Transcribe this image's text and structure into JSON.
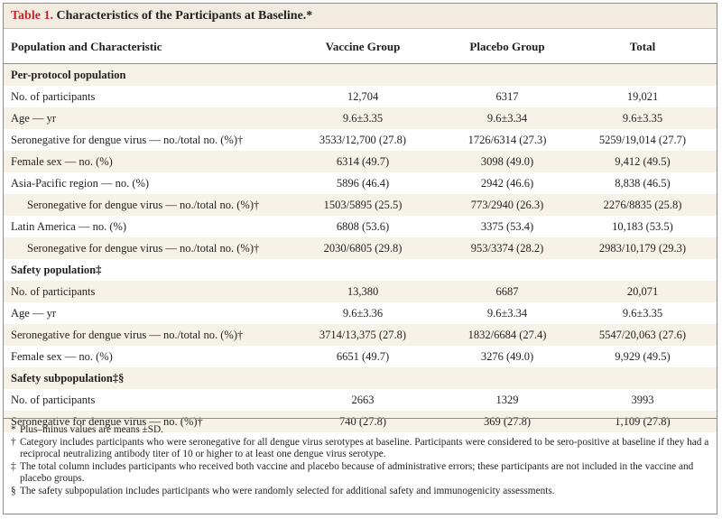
{
  "title": {
    "label": "Table 1.",
    "text": "Characteristics of the Participants at Baseline.*"
  },
  "header": [
    "Population and Characteristic",
    "Vaccine Group",
    "Placebo Group",
    "Total"
  ],
  "rows": [
    {
      "type": "section",
      "label": "Per-protocol population"
    },
    {
      "type": "data",
      "label": "No. of participants",
      "vaccine": "12,704",
      "placebo": "6317",
      "total": "19,021"
    },
    {
      "type": "data",
      "label": "Age — yr",
      "vaccine": "9.6±3.35",
      "placebo": "9.6±3.34",
      "total": "9.6±3.35"
    },
    {
      "type": "data",
      "label": "Seronegative for dengue virus — no./total no. (%)†",
      "vaccine": "3533/12,700 (27.8)",
      "placebo": "1726/6314 (27.3)",
      "total": "5259/19,014 (27.7)"
    },
    {
      "type": "data",
      "label": "Female sex — no. (%)",
      "vaccine": "6314 (49.7)",
      "placebo": "3098 (49.0)",
      "total": "9,412 (49.5)"
    },
    {
      "type": "data",
      "label": "Asia-Pacific region — no. (%)",
      "vaccine": "5896 (46.4)",
      "placebo": "2942 (46.6)",
      "total": "8,838 (46.5)"
    },
    {
      "type": "data",
      "indent": true,
      "label": "Seronegative for dengue virus — no./total no. (%)†",
      "vaccine": "1503/5895 (25.5)",
      "placebo": "773/2940 (26.3)",
      "total": "2276/8835 (25.8)"
    },
    {
      "type": "data",
      "label": "Latin America — no. (%)",
      "vaccine": "6808 (53.6)",
      "placebo": "3375 (53.4)",
      "total": "10,183 (53.5)"
    },
    {
      "type": "data",
      "indent": true,
      "label": "Seronegative for dengue virus — no./total no. (%)†",
      "vaccine": "2030/6805 (29.8)",
      "placebo": "953/3374 (28.2)",
      "total": "2983/10,179 (29.3)"
    },
    {
      "type": "section",
      "label": "Safety population‡"
    },
    {
      "type": "data",
      "label": "No. of participants",
      "vaccine": "13,380",
      "placebo": "6687",
      "total": "20,071"
    },
    {
      "type": "data",
      "label": "Age — yr",
      "vaccine": "9.6±3.36",
      "placebo": "9.6±3.34",
      "total": "9.6±3.35"
    },
    {
      "type": "data",
      "label": "Seronegative for dengue virus — no./total no. (%)†",
      "vaccine": "3714/13,375 (27.8)",
      "placebo": "1832/6684 (27.4)",
      "total": "5547/20,063 (27.6)"
    },
    {
      "type": "data",
      "label": "Female sex — no. (%)",
      "vaccine": "6651 (49.7)",
      "placebo": "3276 (49.0)",
      "total": "9,929 (49.5)"
    },
    {
      "type": "section",
      "label": "Safety subpopulation‡§"
    },
    {
      "type": "data",
      "label": "No. of participants",
      "vaccine": "2663",
      "placebo": "1329",
      "total": "3993"
    },
    {
      "type": "data",
      "label": "Seronegative for dengue virus — no. (%)†",
      "vaccine": "740 (27.8)",
      "placebo": "369 (27.8)",
      "total": "1,109 (27.8)"
    }
  ],
  "footnotes": [
    {
      "sym": "*",
      "text": "Plus–minus values are means ±SD."
    },
    {
      "sym": "†",
      "text": "Category includes participants who were seronegative for all dengue virus serotypes at baseline. Participants were considered to be sero-positive at baseline if they had a reciprocal neutralizing antibody titer of 10 or higher to at least one dengue virus serotype."
    },
    {
      "sym": "‡",
      "text": "The total column includes participants who received both vaccine and placebo because of administrative errors; these participants are not included in the vaccine and placebo groups."
    },
    {
      "sym": "§",
      "text": "The safety subpopulation includes participants who were randomly selected for additional safety and immunogenicity assessments."
    }
  ],
  "colors": {
    "title_label": "#c0262d",
    "title_bar": "#f1ecdf",
    "row_shade": "#f6f2e7"
  }
}
